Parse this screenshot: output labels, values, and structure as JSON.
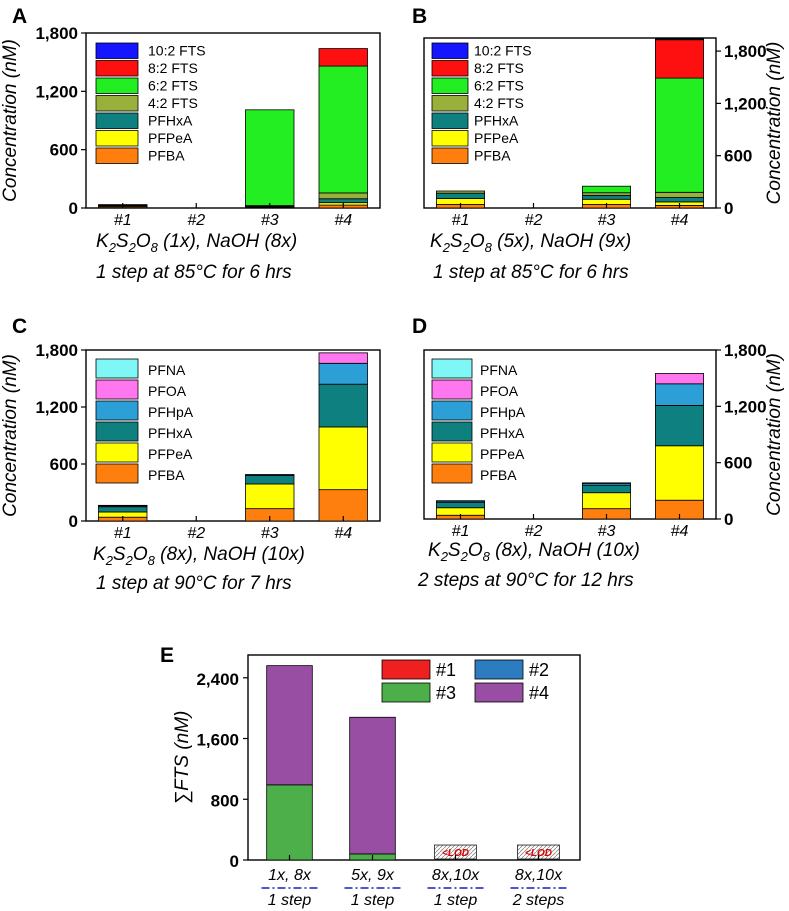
{
  "colors": {
    "PFBA": "#ff7f0e",
    "PFPeA": "#ffff00",
    "PFHxA": "#0f8080",
    "4:2 FTS": "#99b03a",
    "6:2 FTS": "#22ee22",
    "8:2 FTS": "#ff1010",
    "10:2 FTS": "#1515ff",
    "PFHpA": "#2b9fd6",
    "PFOA": "#ff77ee",
    "PFNA": "#7ff7f7",
    "#1": "#ee2020",
    "#2": "#2e7cc0",
    "#3": "#4daf4a",
    "#4": "#984ea3"
  },
  "chart_data": [
    {
      "id": "A",
      "panel_label": "A",
      "type": "stacked-bar",
      "categories": [
        "#1",
        "#2",
        "#3",
        "#4"
      ],
      "ylabel": "Concentration (nM)",
      "ylim": [
        0,
        1800
      ],
      "yticks": [
        "0",
        "600",
        "1,200",
        "1,800"
      ],
      "xlabel": {
        "k": "K",
        "k2": "2",
        "s": "S",
        "s2": "2",
        "o": "O",
        "o8": "8",
        "tail": " (1x), NaOH (8x)"
      },
      "xlabel2": "1 step at 85°C for 6 hrs",
      "legend": [
        "10:2 FTS",
        "8:2 FTS",
        "6:2 FTS",
        "4:2 FTS",
        "PFHxA",
        "PFPeA",
        "PFBA"
      ],
      "series": [
        {
          "name": "PFBA",
          "values": [
            12,
            0,
            8,
            30
          ]
        },
        {
          "name": "PFPeA",
          "values": [
            10,
            0,
            8,
            25
          ]
        },
        {
          "name": "PFHxA",
          "values": [
            8,
            0,
            5,
            40
          ]
        },
        {
          "name": "4:2 FTS",
          "values": [
            5,
            0,
            4,
            60
          ]
        },
        {
          "name": "6:2 FTS",
          "values": [
            0,
            0,
            985,
            1305
          ]
        },
        {
          "name": "8:2 FTS",
          "values": [
            0,
            0,
            0,
            180
          ]
        },
        {
          "name": "10:2 FTS",
          "values": [
            0,
            0,
            0,
            0
          ]
        }
      ]
    },
    {
      "id": "B",
      "panel_label": "B",
      "type": "stacked-bar",
      "categories": [
        "#1",
        "#2",
        "#3",
        "#4"
      ],
      "ylabel": "Concentration (nM)",
      "ylim": [
        0,
        1950
      ],
      "yticks": [
        "0",
        "600",
        "1,200",
        "1,800"
      ],
      "xlabel": {
        "k": "K",
        "k2": "2",
        "s": "S",
        "s2": "2",
        "o": "O",
        "o8": "8",
        "tail": " (5x), NaOH (9x)"
      },
      "xlabel2": "1 step at 85°C for 6 hrs",
      "legend": [
        "10:2 FTS",
        "8:2 FTS",
        "6:2 FTS",
        "4:2 FTS",
        "PFHxA",
        "PFPeA",
        "PFBA"
      ],
      "series": [
        {
          "name": "PFBA",
          "values": [
            40,
            0,
            40,
            30
          ]
        },
        {
          "name": "PFPeA",
          "values": [
            70,
            0,
            60,
            40
          ]
        },
        {
          "name": "PFHxA",
          "values": [
            60,
            0,
            45,
            50
          ]
        },
        {
          "name": "4:2 FTS",
          "values": [
            25,
            0,
            30,
            60
          ]
        },
        {
          "name": "6:2 FTS",
          "values": [
            0,
            0,
            75,
            1310
          ]
        },
        {
          "name": "8:2 FTS",
          "values": [
            0,
            0,
            0,
            440
          ]
        },
        {
          "name": "10:2 FTS",
          "values": [
            0,
            0,
            0,
            10
          ]
        }
      ]
    },
    {
      "id": "C",
      "panel_label": "C",
      "type": "stacked-bar",
      "categories": [
        "#1",
        "#2",
        "#3",
        "#4"
      ],
      "ylabel": "Concentration (nM)",
      "ylim": [
        0,
        1800
      ],
      "yticks": [
        "0",
        "600",
        "1,200",
        "1,800"
      ],
      "xlabel": {
        "k": "K",
        "k2": "2",
        "s": "S",
        "s2": "2",
        "o": "O",
        "o8": "8",
        "tail": " (8x), NaOH (10x)"
      },
      "xlabel2": "1 step at 90°C for 7 hrs",
      "legend": [
        "PFNA",
        "PFOA",
        "PFHpA",
        "PFHxA",
        "PFPeA",
        "PFBA"
      ],
      "series": [
        {
          "name": "PFBA",
          "values": [
            40,
            0,
            130,
            330
          ]
        },
        {
          "name": "PFPeA",
          "values": [
            55,
            0,
            260,
            660
          ]
        },
        {
          "name": "PFHxA",
          "values": [
            55,
            0,
            90,
            450
          ]
        },
        {
          "name": "PFHpA",
          "values": [
            10,
            0,
            10,
            220
          ]
        },
        {
          "name": "PFOA",
          "values": [
            5,
            0,
            0,
            110
          ]
        },
        {
          "name": "PFNA",
          "values": [
            0,
            0,
            0,
            0
          ]
        }
      ]
    },
    {
      "id": "D",
      "panel_label": "D",
      "type": "stacked-bar",
      "categories": [
        "#1",
        "#2",
        "#3",
        "#4"
      ],
      "ylabel": "Concentration (nM)",
      "ylim": [
        0,
        1800
      ],
      "yticks": [
        "0",
        "600",
        "1,200",
        "1,800"
      ],
      "xlabel": {
        "k": "K",
        "k2": "2",
        "s": "S",
        "s2": "2",
        "o": "O",
        "o8": "8",
        "tail": " (8x), NaOH (10x)"
      },
      "xlabel2": "2 steps at 90°C for 12 hrs",
      "legend": [
        "PFNA",
        "PFOA",
        "PFHpA",
        "PFHxA",
        "PFPeA",
        "PFBA"
      ],
      "series": [
        {
          "name": "PFBA",
          "values": [
            40,
            0,
            110,
            200
          ]
        },
        {
          "name": "PFPeA",
          "values": [
            80,
            0,
            170,
            580
          ]
        },
        {
          "name": "PFHxA",
          "values": [
            55,
            0,
            80,
            430
          ]
        },
        {
          "name": "PFHpA",
          "values": [
            15,
            0,
            20,
            230
          ]
        },
        {
          "name": "PFOA",
          "values": [
            5,
            0,
            5,
            110
          ]
        },
        {
          "name": "PFNA",
          "values": [
            0,
            0,
            0,
            0
          ]
        }
      ]
    },
    {
      "id": "E",
      "panel_label": "E",
      "type": "stacked-bar",
      "categories": [
        "1x, 8x",
        "5x, 9x",
        "8x,10x",
        "8x,10x"
      ],
      "category_sublabels": [
        "1 step",
        "1 step",
        "1 step",
        "2 steps"
      ],
      "ylabel": "∑FTS (nM)",
      "ylim": [
        0,
        2700
      ],
      "yticks": [
        "0",
        "800",
        "1,600",
        "2,400"
      ],
      "legend": [
        "#1",
        "#2",
        "#3",
        "#4"
      ],
      "below_lod_label": "<LOD",
      "series": [
        {
          "name": "#1",
          "values": [
            0,
            0,
            0,
            0
          ]
        },
        {
          "name": "#2",
          "values": [
            0,
            0,
            0,
            0
          ]
        },
        {
          "name": "#3",
          "values": [
            990,
            80,
            0,
            0
          ]
        },
        {
          "name": "#4",
          "values": [
            1570,
            1800,
            0,
            0
          ]
        }
      ],
      "below_lod": [
        false,
        false,
        true,
        true
      ]
    }
  ]
}
